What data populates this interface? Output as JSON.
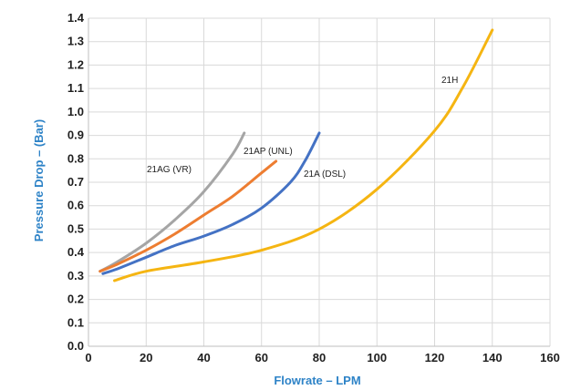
{
  "chart_data": {
    "type": "line",
    "title": "",
    "xlabel": "Flowrate – LPM",
    "ylabel": "Pressure Drop – (Bar)",
    "xlim": [
      0,
      160
    ],
    "ylim": [
      0,
      1.4
    ],
    "xticks": [
      "0",
      "20",
      "40",
      "60",
      "80",
      "100",
      "120",
      "140",
      "160"
    ],
    "yticks": [
      "0.0",
      "0.1",
      "0.2",
      "0.3",
      "0.4",
      "0.5",
      "0.6",
      "0.7",
      "0.8",
      "0.9",
      "1.0",
      "1.1",
      "1.2",
      "1.3",
      "1.4"
    ],
    "grid": true,
    "legend": "none",
    "series": [
      {
        "name": "21AG (VR)",
        "color": "#a5a5a5",
        "x": [
          4,
          10,
          20,
          30,
          40,
          50,
          54
        ],
        "y": [
          0.32,
          0.36,
          0.44,
          0.54,
          0.66,
          0.82,
          0.91
        ]
      },
      {
        "name": "21AP (UNL)",
        "color": "#ed7d31",
        "x": [
          4,
          10,
          20,
          30,
          40,
          50,
          60,
          65
        ],
        "y": [
          0.32,
          0.35,
          0.41,
          0.48,
          0.56,
          0.64,
          0.74,
          0.79
        ]
      },
      {
        "name": "21A (DSL)",
        "color": "#4472c4",
        "x": [
          5,
          10,
          20,
          30,
          40,
          50,
          60,
          70,
          75,
          80
        ],
        "y": [
          0.31,
          0.33,
          0.38,
          0.43,
          0.47,
          0.52,
          0.59,
          0.7,
          0.79,
          0.91
        ]
      },
      {
        "name": "21H",
        "color": "#f5b512",
        "x": [
          9,
          20,
          40,
          60,
          80,
          100,
          120,
          130,
          140
        ],
        "y": [
          0.28,
          0.32,
          0.36,
          0.41,
          0.5,
          0.67,
          0.92,
          1.11,
          1.35
        ]
      }
    ],
    "annotations": [
      "21AG (VR)",
      "21AP (UNL)",
      "21A (DSL)",
      "21H"
    ]
  }
}
